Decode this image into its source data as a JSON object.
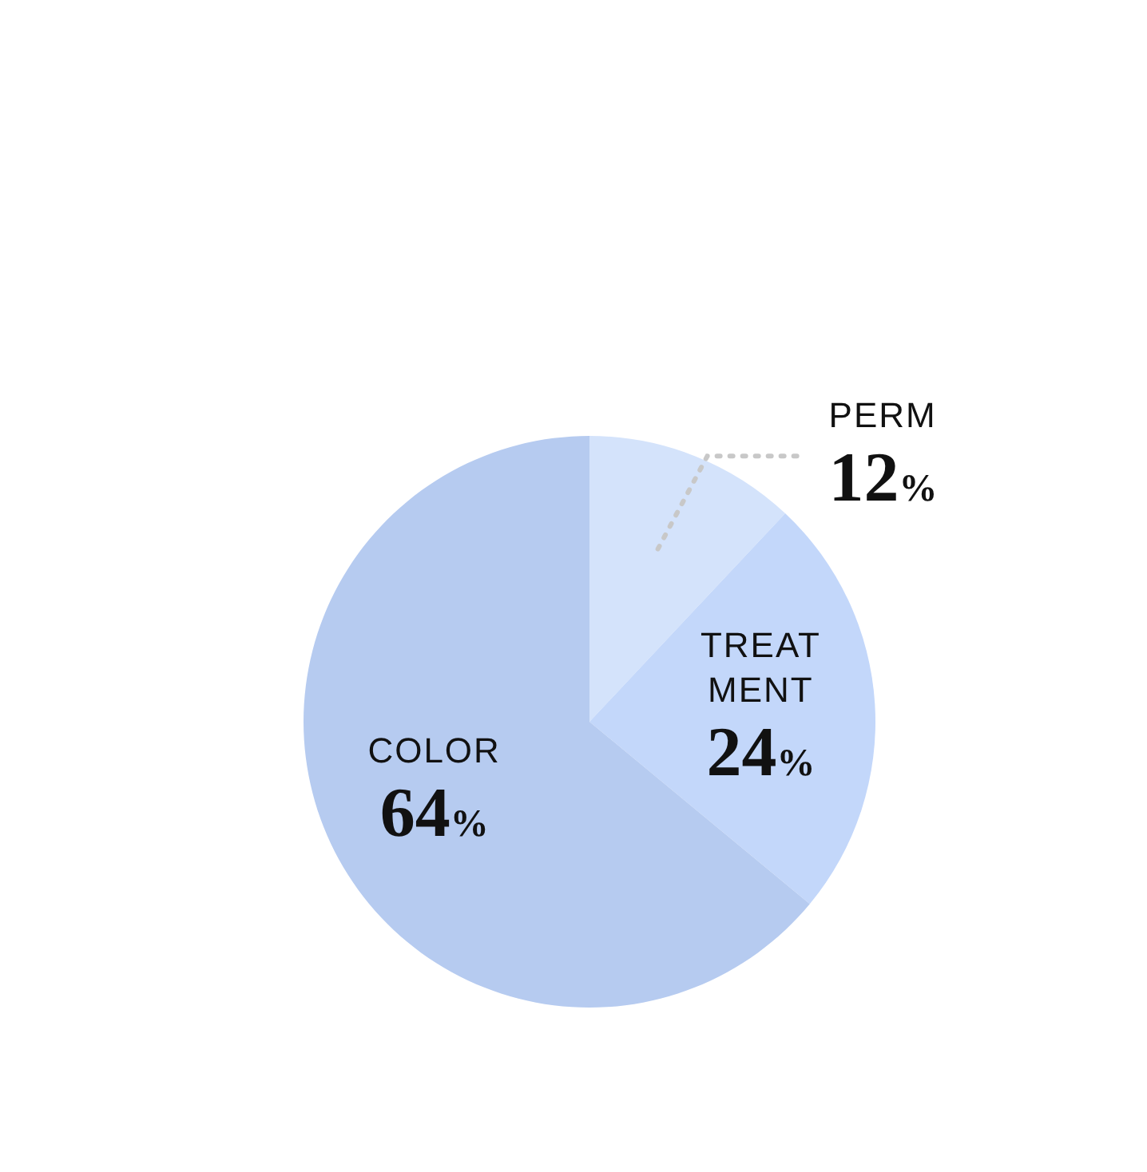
{
  "chart_data": {
    "type": "pie",
    "categories": [
      "PERM",
      "TREAT\nMENT",
      "COLOR"
    ],
    "values": [
      12,
      24,
      64
    ],
    "colors": [
      "#d4e3fb",
      "#c3d7fa",
      "#b6cbf0"
    ],
    "value_labels": [
      "12%",
      "24%",
      "64%"
    ]
  }
}
